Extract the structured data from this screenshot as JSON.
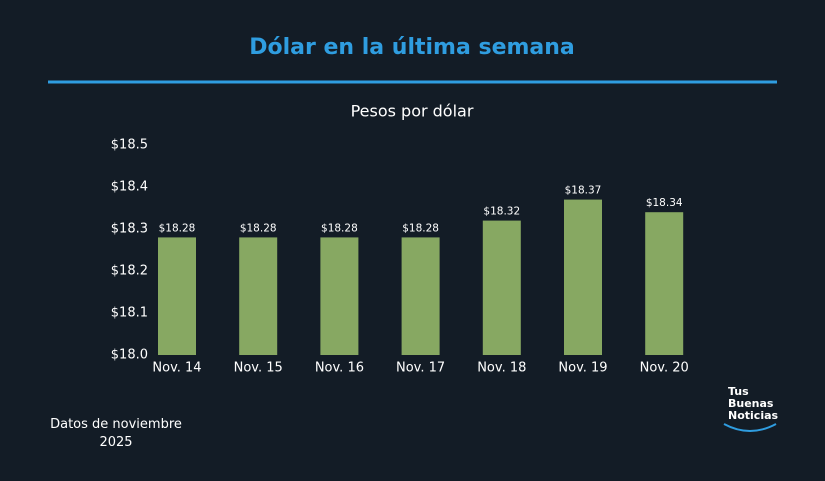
{
  "chart_data": {
    "type": "bar",
    "title": "Dólar en la última semana",
    "subtitle": "Pesos por dólar",
    "categories": [
      "Nov. 14",
      "Nov. 15",
      "Nov. 16",
      "Nov. 17",
      "Nov. 18",
      "Nov. 19",
      "Nov. 20"
    ],
    "values": [
      18.28,
      18.28,
      18.28,
      18.28,
      18.32,
      18.37,
      18.34
    ],
    "value_labels": [
      "$18.28",
      "$18.28",
      "$18.28",
      "$18.28",
      "$18.32",
      "$18.37",
      "$18.34"
    ],
    "color": "#87a862",
    "ylim": [
      18.0,
      18.5
    ],
    "yticks": [
      {
        "value": 18.0,
        "label": "$18.0"
      },
      {
        "value": 18.1,
        "label": "$18.1"
      },
      {
        "value": 18.2,
        "label": "$18.2"
      },
      {
        "value": 18.3,
        "label": "$18.3"
      },
      {
        "value": 18.4,
        "label": "$18.4"
      },
      {
        "value": 18.5,
        "label": "$18.5"
      }
    ],
    "grid": false,
    "note": "Datos de noviembre 2025",
    "logo": [
      "Tus",
      "Buenas",
      "Noticias"
    ]
  }
}
